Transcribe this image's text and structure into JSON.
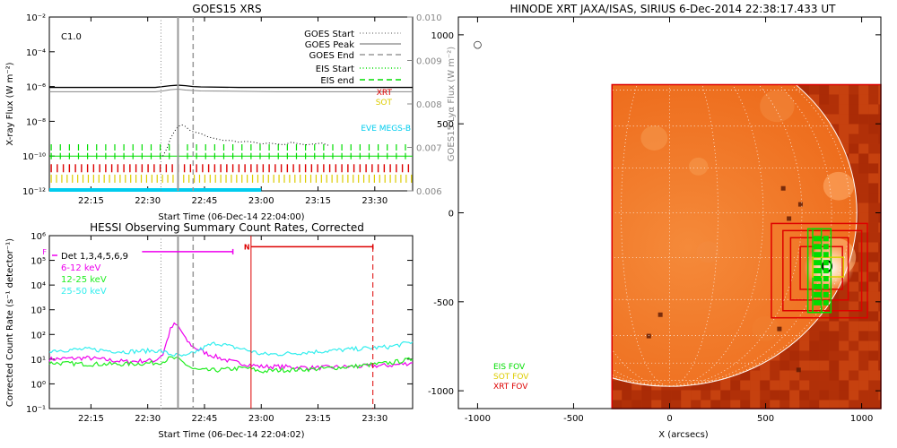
{
  "colors": {
    "eis": "#00dd00",
    "sot": "#ddcc00",
    "xrt": "#dd0000",
    "eve": "#00ccee",
    "goes_peak": "#999999",
    "hessi_6_12": "#ee00ee",
    "hessi_12_25": "#22ee22",
    "hessi_25_50": "#33eeee",
    "sun_base": "#f07020"
  },
  "chart_data": [
    {
      "type": "line",
      "title": "GOES15 XRS",
      "class_label": "C1.0",
      "xlabel": "Start Time (06-Dec-14 22:04:00)",
      "ylabel": "X-ray Flux (W m⁻²)",
      "ylabel_right": "GOES15 Lyα Flux (W m⁻²)",
      "xlim_minutes": [
        0,
        96
      ],
      "xticks": [
        {
          "label": "22:15",
          "min": 11
        },
        {
          "label": "22:30",
          "min": 26
        },
        {
          "label": "22:45",
          "min": 41
        },
        {
          "label": "23:00",
          "min": 56
        },
        {
          "label": "23:15",
          "min": 71
        },
        {
          "label": "23:30",
          "min": 86
        }
      ],
      "ylim_log": [
        -12,
        -2
      ],
      "yticks": [
        "10⁻²",
        "10⁻⁴",
        "10⁻⁶",
        "10⁻⁸",
        "10⁻¹⁰",
        "10⁻¹²"
      ],
      "yticks_right": [
        "0.010",
        "0.009",
        "0.008",
        "0.007",
        "0.006"
      ],
      "ylim_right": [
        0.006,
        0.01
      ],
      "legend": [
        {
          "label": "GOES Start",
          "style": "dotted",
          "color": "#888888"
        },
        {
          "label": "GOES Peak",
          "style": "solid",
          "color": "#999999"
        },
        {
          "label": "GOES End",
          "style": "dashed",
          "color": "#999999"
        },
        {
          "label": "EIS Start",
          "style": "dotted",
          "color": "#00dd00"
        },
        {
          "label": "EIS end",
          "style": "dashed",
          "color": "#00dd00"
        }
      ],
      "markers_minutes": {
        "goes_start": 29.5,
        "goes_peak": 34,
        "goes_end": 38
      },
      "instrument_labels": [
        {
          "label": "XRT",
          "color": "#dd0000"
        },
        {
          "label": "SOT",
          "color": "#ddcc00"
        },
        {
          "label": "EVE MEGS-B",
          "color": "#00ccee"
        }
      ],
      "series": [
        {
          "name": "long",
          "color": "#000000",
          "x": [
            0,
            10,
            20,
            28,
            30,
            32,
            34,
            36,
            38,
            40,
            50,
            60,
            70,
            80,
            90,
            96
          ],
          "y": [
            -6.05,
            -6.05,
            -6.05,
            -6.05,
            -6.0,
            -5.95,
            -5.92,
            -5.95,
            -6.0,
            -6.02,
            -6.05,
            -6.05,
            -6.05,
            -6.05,
            -6.05,
            -6.05
          ]
        },
        {
          "name": "lya",
          "color": "#888888",
          "x": [
            0,
            20,
            28,
            30,
            32,
            34,
            36,
            40,
            60,
            96
          ],
          "y": [
            -6.3,
            -6.3,
            -6.3,
            -6.25,
            -6.18,
            -6.15,
            -6.2,
            -6.25,
            -6.3,
            -6.3
          ]
        },
        {
          "name": "short",
          "color": "#000000",
          "style": "dotted",
          "x": [
            30,
            31,
            32,
            33,
            34,
            35,
            36,
            37,
            38,
            40,
            42,
            44,
            46,
            48,
            50,
            52,
            54,
            56,
            58,
            60,
            62,
            64,
            66,
            68,
            70,
            72,
            74
          ],
          "y": [
            -10.0,
            -9.6,
            -9.0,
            -8.6,
            -8.3,
            -8.2,
            -8.3,
            -8.5,
            -8.6,
            -8.7,
            -8.9,
            -9.0,
            -9.1,
            -9.1,
            -9.2,
            -9.15,
            -9.2,
            -9.3,
            -9.25,
            -9.3,
            -9.35,
            -9.2,
            -9.3,
            -9.35,
            -9.3,
            -9.25,
            -9.4
          ]
        }
      ],
      "coverage_rows": [
        {
          "name": "EIS",
          "color": "#00dd00",
          "ranges": [
            [
              0,
              96
            ]
          ],
          "y": -9.5
        },
        {
          "name": "EIS",
          "color": "#00dd00",
          "ranges": [
            [
              0,
              96
            ]
          ],
          "y": -10.0
        },
        {
          "name": "XRT",
          "color": "#dd0000",
          "ranges": [
            [
              0,
              96
            ]
          ],
          "y": -10.7
        },
        {
          "name": "SOT",
          "color": "#ddcc00",
          "ranges": [
            [
              0,
              96
            ]
          ],
          "y": -11.3
        },
        {
          "name": "EVE",
          "color": "#00ccee",
          "ranges": [
            [
              0,
              56
            ]
          ],
          "y": -12.0
        }
      ]
    },
    {
      "type": "line",
      "title": "HESSI Observing Summary Count Rates, Corrected",
      "xlabel": "Start Time (06-Dec-14 22:04:02)",
      "ylabel": "Corrected Count Rate (s⁻¹ detector⁻¹)",
      "xlim_minutes": [
        0,
        96
      ],
      "xticks": [
        {
          "label": "22:15",
          "min": 11
        },
        {
          "label": "22:30",
          "min": 26
        },
        {
          "label": "22:45",
          "min": 41
        },
        {
          "label": "23:00",
          "min": 56
        },
        {
          "label": "23:15",
          "min": 71
        },
        {
          "label": "23:30",
          "min": 86
        }
      ],
      "ylim_log": [
        -1,
        6
      ],
      "yticks": [
        "10⁶",
        "10⁵",
        "10⁴",
        "10³",
        "10²",
        "10¹",
        "10⁰",
        "10⁻¹"
      ],
      "legend_header": "Det 1,3,4,5,6,9",
      "flag_labels": [
        "F",
        "N"
      ],
      "markers_minutes": {
        "goes_start": 29.5,
        "goes_peak": 34,
        "goes_end": 38,
        "night_start": 53.3,
        "night_end": 85.5
      },
      "series": [
        {
          "name": "6-12 keV",
          "color": "#ee00ee",
          "x": [
            0,
            10,
            20,
            28,
            30,
            31,
            32,
            33,
            34,
            35,
            36,
            38,
            40,
            42,
            44,
            46,
            48,
            50,
            52,
            54,
            56,
            60,
            70,
            80,
            90,
            96
          ],
          "y": [
            1.0,
            1.05,
            0.9,
            0.95,
            1.2,
            1.7,
            2.2,
            2.4,
            2.35,
            2.1,
            1.8,
            1.5,
            1.35,
            1.2,
            1.1,
            1.0,
            0.9,
            0.85,
            0.8,
            0.75,
            0.7,
            0.7,
            0.65,
            0.7,
            0.75,
            0.85
          ]
        },
        {
          "name": "12-25 keV",
          "color": "#22ee22",
          "x": [
            0,
            10,
            20,
            28,
            30,
            32,
            34,
            36,
            38,
            40,
            44,
            48,
            52,
            56,
            60,
            70,
            80,
            90,
            96
          ],
          "y": [
            0.85,
            0.8,
            0.8,
            0.85,
            0.9,
            1.05,
            1.0,
            0.8,
            0.6,
            0.55,
            0.55,
            0.6,
            0.65,
            0.5,
            0.55,
            0.6,
            0.7,
            0.85,
            1.0
          ]
        },
        {
          "name": "25-50 keV",
          "color": "#33eeee",
          "x": [
            0,
            10,
            20,
            28,
            30,
            32,
            34,
            36,
            38,
            40,
            42,
            44,
            46,
            48,
            50,
            54,
            56,
            60,
            70,
            80,
            90,
            96
          ],
          "y": [
            1.35,
            1.4,
            1.3,
            1.35,
            1.3,
            1.2,
            1.15,
            1.1,
            1.25,
            1.4,
            1.55,
            1.65,
            1.6,
            1.5,
            1.45,
            1.3,
            1.2,
            1.2,
            1.3,
            1.4,
            1.5,
            1.7
          ]
        }
      ],
      "bars": [
        {
          "color": "#ee00ee",
          "x": [
            24.5,
            48.5
          ],
          "y": 5.35
        },
        {
          "color": "#dd0000",
          "x": [
            53.3,
            85.5
          ],
          "y": 5.55
        }
      ]
    },
    {
      "type": "heatmap",
      "title": "HINODE XRT JAXA/ISAS, SIRIUS   6-Dec-2014 22:38:17.433 UT",
      "xlabel": "X (arcsecs)",
      "ylabel": "",
      "xlim": [
        -1100,
        1100
      ],
      "ylim": [
        -1100,
        1100
      ],
      "xticks": [
        -1000,
        -500,
        0,
        500,
        1000
      ],
      "yticks": [
        1000,
        500,
        0,
        -500,
        -1000
      ],
      "solar_radius_arcsec": 975,
      "image_extent": {
        "x": [
          -300,
          1100
        ],
        "y": [
          -1100,
          720
        ]
      },
      "fov_legend": [
        {
          "label": "EIS FOV",
          "color": "#00dd00"
        },
        {
          "label": "SOT FOV",
          "color": "#ddcc00"
        },
        {
          "label": "XRT FOV",
          "color": "#dd0000"
        }
      ],
      "fov_boxes": [
        {
          "color": "#dd0000",
          "x": [
            -300,
            1100
          ],
          "y": [
            -1100,
            720
          ]
        },
        {
          "color": "#dd0000",
          "x": [
            530,
            1030
          ],
          "y": [
            -590,
            -60
          ]
        },
        {
          "color": "#dd0000",
          "x": [
            590,
            1000
          ],
          "y": [
            -550,
            -100
          ]
        },
        {
          "color": "#dd0000",
          "x": [
            630,
            930
          ],
          "y": [
            -490,
            -140
          ]
        },
        {
          "color": "#dd0000",
          "x": [
            680,
            900
          ],
          "y": [
            -430,
            -190
          ]
        },
        {
          "color": "#00dd00",
          "x": [
            720,
            840
          ],
          "y": [
            -560,
            -90
          ]
        },
        {
          "color": "#00dd00",
          "x": [
            745,
            790
          ],
          "y": [
            -560,
            -90
          ]
        },
        {
          "color": "#ddcc00",
          "x": [
            745,
            905
          ],
          "y": [
            -360,
            -250
          ]
        }
      ],
      "target_symbol": "○"
    }
  ]
}
